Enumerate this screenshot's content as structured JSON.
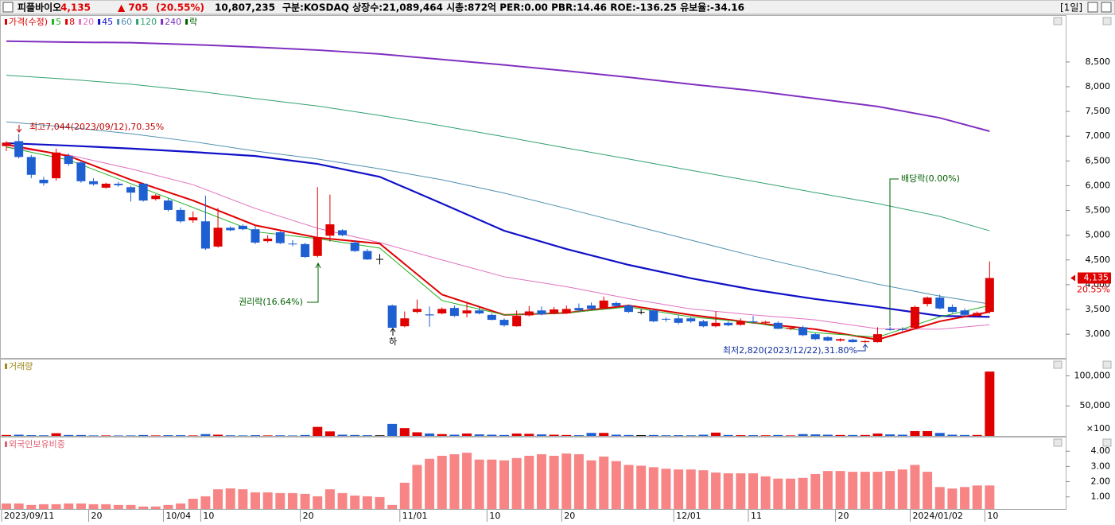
{
  "header": {
    "name": "피플바이오",
    "price": "4,135",
    "change": "▲ 705",
    "change_pct": "(20.55%)",
    "volume": "10,807,235",
    "info": "구분:KOSDAQ 상장수:21,089,464 시총:872억 PER:0.00 PBR:14.46 ROE:-136.25 유보율:-34.16",
    "period": "[1일]"
  },
  "chart_data": [
    {
      "type": "candlestick",
      "name": "가격(수정)",
      "color_up": "#e00000",
      "color_down": "#1e5fd2",
      "color_flat": "#000000",
      "categories": [
        "2023/09/11",
        null,
        null,
        null,
        null,
        null,
        null,
        "20",
        null,
        null,
        null,
        null,
        null,
        "10/04",
        null,
        null,
        "10",
        null,
        null,
        null,
        null,
        null,
        null,
        null,
        "20",
        null,
        null,
        null,
        null,
        null,
        null,
        null,
        "11/01",
        null,
        null,
        null,
        null,
        null,
        null,
        "10",
        null,
        null,
        null,
        null,
        null,
        "20",
        null,
        null,
        null,
        null,
        null,
        null,
        null,
        null,
        "12/01",
        null,
        null,
        null,
        null,
        null,
        "11",
        null,
        null,
        null,
        null,
        null,
        null,
        "20",
        null,
        null,
        null,
        null,
        null,
        "2024/01/02",
        null,
        null,
        null,
        null,
        null,
        "10"
      ],
      "open": [
        6800,
        6900,
        6580,
        6120,
        6150,
        6600,
        6470,
        6090,
        5960,
        6040,
        5970,
        6040,
        5730,
        5700,
        5510,
        5300,
        5280,
        4770,
        5150,
        5190,
        5120,
        4880,
        5060,
        4830,
        4820,
        4580,
        4990,
        5100,
        4850,
        4680,
        4520,
        3580,
        3160,
        3450,
        3400,
        3420,
        3530,
        3420,
        3480,
        3390,
        3290,
        3160,
        3380,
        3480,
        3420,
        3420,
        3530,
        3580,
        3530,
        3630,
        3580,
        3450,
        3480,
        3310,
        3320,
        3320,
        3260,
        3160,
        3230,
        3190,
        3260,
        3230,
        3230,
        3110,
        3140,
        3000,
        2940,
        2870,
        2890,
        2840,
        2840,
        3100,
        3100,
        3130,
        3610,
        3740,
        3550,
        3480,
        3370,
        3450
      ],
      "high": [
        6900,
        7044,
        6620,
        6180,
        6750,
        6650,
        6500,
        6150,
        6060,
        6080,
        6000,
        6060,
        5830,
        5740,
        5560,
        5480,
        5800,
        5550,
        5180,
        5220,
        5180,
        5000,
        5080,
        4900,
        4850,
        5970,
        5820,
        5120,
        4900,
        4720,
        4620,
        3600,
        3460,
        3700,
        3560,
        3540,
        3580,
        3630,
        3540,
        3420,
        3320,
        3480,
        3570,
        3560,
        3550,
        3580,
        3620,
        3640,
        3760,
        3660,
        3600,
        3500,
        3500,
        3340,
        3380,
        3340,
        3290,
        3460,
        3260,
        3320,
        3370,
        3270,
        3260,
        3150,
        3170,
        3020,
        2960,
        2920,
        2910,
        2880,
        3140,
        3150,
        3140,
        3580,
        3760,
        3800,
        3600,
        3520,
        3460,
        4470
      ],
      "low": [
        6700,
        6550,
        6150,
        6000,
        6100,
        6400,
        6060,
        6000,
        5940,
        5980,
        5680,
        5680,
        5700,
        5480,
        5250,
        5250,
        4700,
        4750,
        5080,
        5100,
        4820,
        4850,
        4820,
        4780,
        4540,
        4550,
        4870,
        4980,
        4660,
        4500,
        4410,
        3120,
        3140,
        3420,
        3150,
        3400,
        3350,
        3340,
        3400,
        3280,
        3150,
        3150,
        3360,
        3380,
        3400,
        3410,
        3470,
        3500,
        3510,
        3550,
        3430,
        3400,
        3240,
        3250,
        3200,
        3230,
        3140,
        3140,
        3160,
        3170,
        3220,
        3190,
        3100,
        3080,
        2960,
        2880,
        2860,
        2850,
        2830,
        2820,
        2830,
        3070,
        3060,
        3120,
        3560,
        3500,
        3430,
        3380,
        3350,
        3420
      ],
      "close": [
        6870,
        6580,
        6220,
        6050,
        6670,
        6440,
        6090,
        6030,
        6040,
        6010,
        5860,
        5700,
        5800,
        5510,
        5280,
        5360,
        4730,
        5150,
        5100,
        5120,
        4850,
        4930,
        4840,
        4820,
        4560,
        4960,
        5220,
        5000,
        4680,
        4510,
        4520,
        3130,
        3320,
        3510,
        3380,
        3510,
        3370,
        3480,
        3420,
        3290,
        3180,
        3370,
        3460,
        3400,
        3500,
        3510,
        3480,
        3510,
        3680,
        3570,
        3450,
        3450,
        3260,
        3300,
        3230,
        3260,
        3160,
        3230,
        3180,
        3260,
        3250,
        3250,
        3110,
        3130,
        2980,
        2900,
        2870,
        2900,
        2840,
        2860,
        3000,
        3090,
        3090,
        3550,
        3740,
        3520,
        3450,
        3390,
        3430,
        4135
      ],
      "series": [
        {
          "name": "5",
          "color": "#22b022",
          "width": 1,
          "x": [
            0,
            5,
            10,
            15,
            20,
            25,
            30,
            35,
            40,
            45,
            50,
            55,
            60,
            65,
            70,
            75,
            79
          ],
          "values": [
            6780,
            6520,
            6040,
            5560,
            5070,
            4930,
            4740,
            3680,
            3390,
            3430,
            3550,
            3350,
            3230,
            3030,
            2940,
            3350,
            3580
          ]
        },
        {
          "name": "8",
          "color": "#e00000",
          "width": 2,
          "x": [
            0,
            5,
            10,
            15,
            20,
            25,
            30,
            35,
            40,
            45,
            50,
            55,
            60,
            65,
            70,
            75,
            79
          ],
          "values": [
            6830,
            6600,
            6120,
            5700,
            5200,
            4950,
            4830,
            3800,
            3390,
            3430,
            3580,
            3390,
            3230,
            3100,
            2890,
            3260,
            3450
          ]
        },
        {
          "name": "20",
          "color": "#e070c0",
          "width": 1,
          "x": [
            0,
            5,
            10,
            15,
            20,
            25,
            30,
            35,
            40,
            45,
            50,
            55,
            60,
            65,
            70,
            75,
            79
          ],
          "values": [
            6780,
            6620,
            6340,
            6020,
            5540,
            5140,
            4850,
            4500,
            4160,
            3960,
            3720,
            3510,
            3390,
            3290,
            3110,
            3100,
            3190
          ]
        },
        {
          "name": "45",
          "color": "#1010c8",
          "width": 2.2,
          "x": [
            0,
            5,
            10,
            15,
            20,
            25,
            30,
            35,
            40,
            45,
            50,
            55,
            60,
            65,
            70,
            75,
            79
          ],
          "values": [
            6860,
            6810,
            6750,
            6680,
            6600,
            6440,
            6180,
            5640,
            5090,
            4720,
            4400,
            4130,
            3900,
            3710,
            3550,
            3370,
            3350
          ]
        },
        {
          "name": "60",
          "color": "#5090b0",
          "width": 1,
          "x": [
            0,
            5,
            10,
            15,
            20,
            25,
            30,
            35,
            40,
            45,
            50,
            55,
            60,
            65,
            70,
            75,
            79
          ],
          "values": [
            7290,
            7180,
            7050,
            6890,
            6700,
            6540,
            6340,
            6120,
            5850,
            5540,
            5220,
            4900,
            4580,
            4290,
            4010,
            3770,
            3610
          ]
        },
        {
          "name": "120",
          "color": "#30a070",
          "width": 1,
          "x": [
            0,
            5,
            10,
            15,
            20,
            25,
            30,
            35,
            40,
            45,
            50,
            55,
            60,
            65,
            70,
            75,
            79
          ],
          "values": [
            8230,
            8150,
            8050,
            7920,
            7760,
            7610,
            7420,
            7210,
            6990,
            6760,
            6540,
            6310,
            6090,
            5860,
            5640,
            5380,
            5090
          ]
        },
        {
          "name": "240",
          "color": "#8030c0",
          "width": 2,
          "x": [
            0,
            5,
            10,
            15,
            20,
            25,
            30,
            35,
            40,
            45,
            50,
            55,
            60,
            65,
            70,
            75,
            79
          ],
          "values": [
            8920,
            8900,
            8890,
            8850,
            8800,
            8740,
            8660,
            8550,
            8440,
            8320,
            8190,
            8050,
            7920,
            7760,
            7600,
            7370,
            7100
          ]
        }
      ],
      "lock_legend": "락",
      "annotations": [
        {
          "text": "최고7,044(2023/09/12),70.35%"
        },
        {
          "text": "권리락(16.64%)"
        },
        {
          "text": "하"
        },
        {
          "text": "배당락(0.00%)"
        },
        {
          "text": "최저2,820(2023/12/22),31.80%"
        }
      ],
      "last_label": "4,135",
      "change_label": "20.55%",
      "ylim": [
        2520,
        9430
      ],
      "yticks": [
        {
          "value": 3000,
          "label": "3,000"
        },
        {
          "value": 3500,
          "label": "3,500"
        },
        {
          "value": 4000,
          "label": "4,000"
        },
        {
          "value": 4500,
          "label": "4,500"
        },
        {
          "value": 5000,
          "label": "5,000"
        },
        {
          "value": 5500,
          "label": "5,500"
        },
        {
          "value": 6000,
          "label": "6,000"
        },
        {
          "value": 6500,
          "label": "6,500"
        },
        {
          "value": 7000,
          "label": "7,000"
        },
        {
          "value": 7500,
          "label": "7,500"
        },
        {
          "value": 8000,
          "label": "8,000"
        },
        {
          "value": 8500,
          "label": "8,500"
        }
      ]
    },
    {
      "type": "bar",
      "title": "거래량",
      "title_color": "#a08a20",
      "unit_label": "×100",
      "values": [
        1500,
        2000,
        1200,
        1000,
        4500,
        1500,
        1500,
        800,
        800,
        700,
        800,
        1500,
        800,
        1200,
        1200,
        800,
        3000,
        2000,
        1000,
        800,
        1200,
        800,
        1000,
        700,
        1500,
        15000,
        7500,
        2000,
        1500,
        1200,
        1000,
        20000,
        13000,
        6000,
        4000,
        3000,
        2000,
        4000,
        2500,
        2000,
        1500,
        4000,
        3500,
        2500,
        2000,
        1500,
        1200,
        5000,
        5000,
        2000,
        1500,
        1200,
        1500,
        1000,
        1200,
        1000,
        2000,
        5500,
        1500,
        1200,
        1200,
        1000,
        1500,
        800,
        3000,
        2500,
        2000,
        1500,
        1500,
        1500,
        4000,
        2500,
        2000,
        8000,
        8000,
        5000,
        2000,
        1500,
        1500,
        107000
      ],
      "ylim": [
        0,
        127000
      ],
      "yticks": [
        {
          "value": 50000,
          "label": "50,000"
        },
        {
          "value": 100000,
          "label": "100,000"
        }
      ]
    },
    {
      "type": "bar",
      "title": "외국인보유비중",
      "title_color": "#e06070",
      "color": "#f88585",
      "values": [
        0.57,
        0.57,
        0.47,
        0.52,
        0.52,
        0.57,
        0.57,
        0.52,
        0.52,
        0.47,
        0.47,
        0.37,
        0.37,
        0.47,
        0.57,
        0.88,
        1.04,
        1.5,
        1.56,
        1.5,
        1.3,
        1.3,
        1.25,
        1.25,
        1.2,
        1.04,
        1.5,
        1.25,
        1.09,
        1.04,
        0.99,
        0.47,
        1.93,
        3.1,
        3.5,
        3.7,
        3.8,
        3.9,
        3.45,
        3.45,
        3.4,
        3.55,
        3.7,
        3.8,
        3.7,
        3.85,
        3.8,
        3.4,
        3.65,
        3.35,
        3.1,
        3.05,
        2.95,
        2.85,
        2.8,
        2.8,
        2.75,
        2.6,
        2.55,
        2.55,
        2.55,
        2.35,
        2.2,
        2.2,
        2.25,
        2.5,
        2.7,
        2.7,
        2.65,
        2.65,
        2.65,
        2.7,
        2.8,
        3.1,
        2.65,
        1.65,
        1.55,
        1.65,
        1.75,
        1.75
      ],
      "ylim": [
        0.2,
        4.9
      ],
      "yticks": [
        {
          "value": 1,
          "label": "1.00"
        },
        {
          "value": 2,
          "label": "2.00"
        },
        {
          "value": 3,
          "label": "3.00"
        },
        {
          "value": 4,
          "label": "4.00"
        }
      ]
    }
  ]
}
